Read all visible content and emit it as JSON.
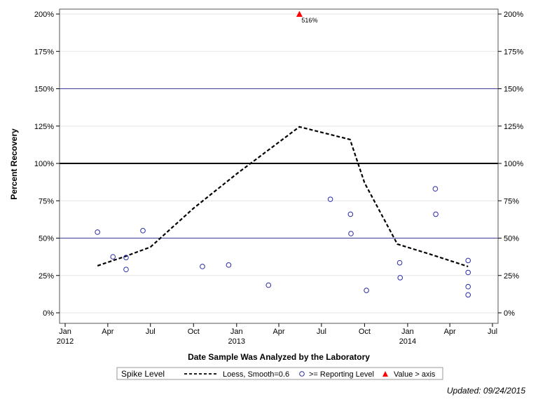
{
  "chart_data": {
    "type": "scatter",
    "xlabel": "Date Sample Was Analyzed by the Laboratory",
    "ylabel": "Percent Recovery",
    "xlim": [
      "2012-01-01",
      "2014-07-01"
    ],
    "ylim": [
      0,
      200
    ],
    "x_ticks": [
      {
        "date": "2012-01-01",
        "label": "Jan",
        "year": "2012"
      },
      {
        "date": "2012-04-01",
        "label": "Apr",
        "year": ""
      },
      {
        "date": "2012-07-01",
        "label": "Jul",
        "year": ""
      },
      {
        "date": "2012-10-01",
        "label": "Oct",
        "year": ""
      },
      {
        "date": "2013-01-01",
        "label": "Jan",
        "year": "2013"
      },
      {
        "date": "2013-04-01",
        "label": "Apr",
        "year": ""
      },
      {
        "date": "2013-07-01",
        "label": "Jul",
        "year": ""
      },
      {
        "date": "2013-10-01",
        "label": "Oct",
        "year": ""
      },
      {
        "date": "2014-01-01",
        "label": "Jan",
        "year": "2014"
      },
      {
        "date": "2014-04-01",
        "label": "Apr",
        "year": ""
      },
      {
        "date": "2014-07-01",
        "label": "Jul",
        "year": ""
      }
    ],
    "y_ticks": [
      0,
      25,
      50,
      75,
      100,
      125,
      150,
      175,
      200
    ],
    "y_tick_suffix": "%",
    "reference_lines": [
      {
        "y": 100,
        "color": "#000000",
        "width": 2
      },
      {
        "y": 150,
        "color": "#3a3a9a",
        "width": 1
      },
      {
        "y": 50,
        "color": "#3a3a9a",
        "width": 1
      }
    ],
    "series": [
      {
        "name": ">= Reporting Level",
        "marker": "circle",
        "color": "#2a2aa8",
        "points": [
          {
            "x": "2012-03-10",
            "y": 54
          },
          {
            "x": "2012-04-12",
            "y": 37.5
          },
          {
            "x": "2012-05-10",
            "y": 37
          },
          {
            "x": "2012-05-10",
            "y": 29
          },
          {
            "x": "2012-06-15",
            "y": 55
          },
          {
            "x": "2012-10-20",
            "y": 31
          },
          {
            "x": "2012-12-15",
            "y": 32
          },
          {
            "x": "2013-03-10",
            "y": 18.5
          },
          {
            "x": "2013-07-20",
            "y": 76
          },
          {
            "x": "2013-09-01",
            "y": 66
          },
          {
            "x": "2013-09-02",
            "y": 53
          },
          {
            "x": "2013-10-05",
            "y": 15
          },
          {
            "x": "2013-12-15",
            "y": 33.5
          },
          {
            "x": "2013-12-16",
            "y": 23.5
          },
          {
            "x": "2014-03-01",
            "y": 83
          },
          {
            "x": "2014-03-02",
            "y": 66
          },
          {
            "x": "2014-05-10",
            "y": 35
          },
          {
            "x": "2014-05-10",
            "y": 27
          },
          {
            "x": "2014-05-10",
            "y": 17.5
          },
          {
            "x": "2014-05-10",
            "y": 12
          }
        ]
      },
      {
        "name": "Loess, Smooth=0.6",
        "type": "line",
        "style": "dashed",
        "color": "#000000",
        "points": [
          {
            "x": "2012-03-10",
            "y": 31.5
          },
          {
            "x": "2012-05-10",
            "y": 38
          },
          {
            "x": "2012-07-01",
            "y": 44
          },
          {
            "x": "2012-10-01",
            "y": 70
          },
          {
            "x": "2013-01-01",
            "y": 93
          },
          {
            "x": "2013-03-10",
            "y": 109
          },
          {
            "x": "2013-05-15",
            "y": 124.5
          },
          {
            "x": "2013-08-31",
            "y": 116
          },
          {
            "x": "2013-10-01",
            "y": 87
          },
          {
            "x": "2013-12-10",
            "y": 46
          },
          {
            "x": "2014-02-20",
            "y": 39
          },
          {
            "x": "2014-05-10",
            "y": 31
          }
        ]
      },
      {
        "name": "Value > axis",
        "marker": "triangle",
        "color": "#ff0000",
        "points": [
          {
            "x": "2013-05-15",
            "y": 200,
            "label": "516%"
          }
        ]
      }
    ],
    "legend": {
      "title": "Spike Level",
      "position": "bottom-center",
      "items": [
        {
          "label": "Loess, Smooth=0.6",
          "symbol": "dashed-line"
        },
        {
          "label": ">= Reporting Level",
          "symbol": "circle"
        },
        {
          "label": "Value > axis",
          "symbol": "triangle"
        }
      ]
    }
  },
  "footer": {
    "updated": "Updated: 09/24/2015"
  }
}
